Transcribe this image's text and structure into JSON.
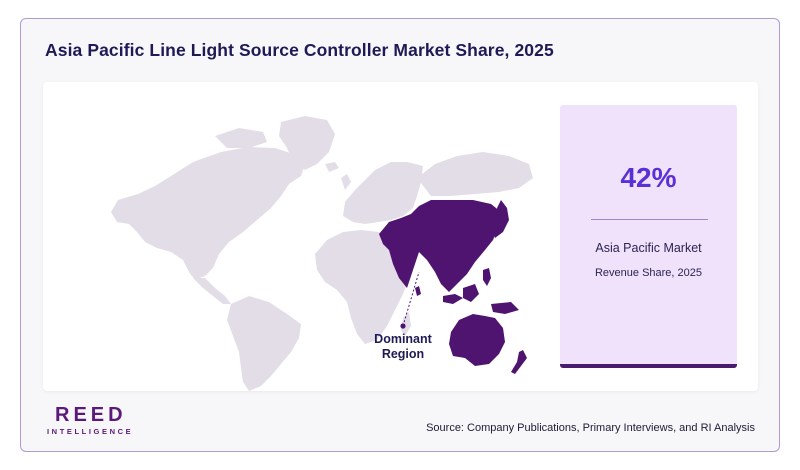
{
  "title": "Asia Pacific Line Light Source Controller Market Share, 2025",
  "map": {
    "region_label": "Dominant Region",
    "highlighted_region": "Asia Pacific",
    "colors": {
      "land": "#e3dde8",
      "highlight": "#4e1470",
      "marker": "#4e1470"
    }
  },
  "stat": {
    "value": "42%",
    "label": "Asia Pacific Market",
    "sublabel": "Revenue Share, 2025"
  },
  "logo": {
    "main": "REED",
    "sub": "INTELLIGENCE"
  },
  "footer": {
    "source": "Source: Company Publications, Primary Interviews, and RI Analysis"
  },
  "colors": {
    "title": "#1f1a55",
    "accent": "#5b2fd6",
    "card_bg": "#f1e2fc",
    "brand": "#5b1a7a",
    "frame_border": "#b39ad6"
  }
}
